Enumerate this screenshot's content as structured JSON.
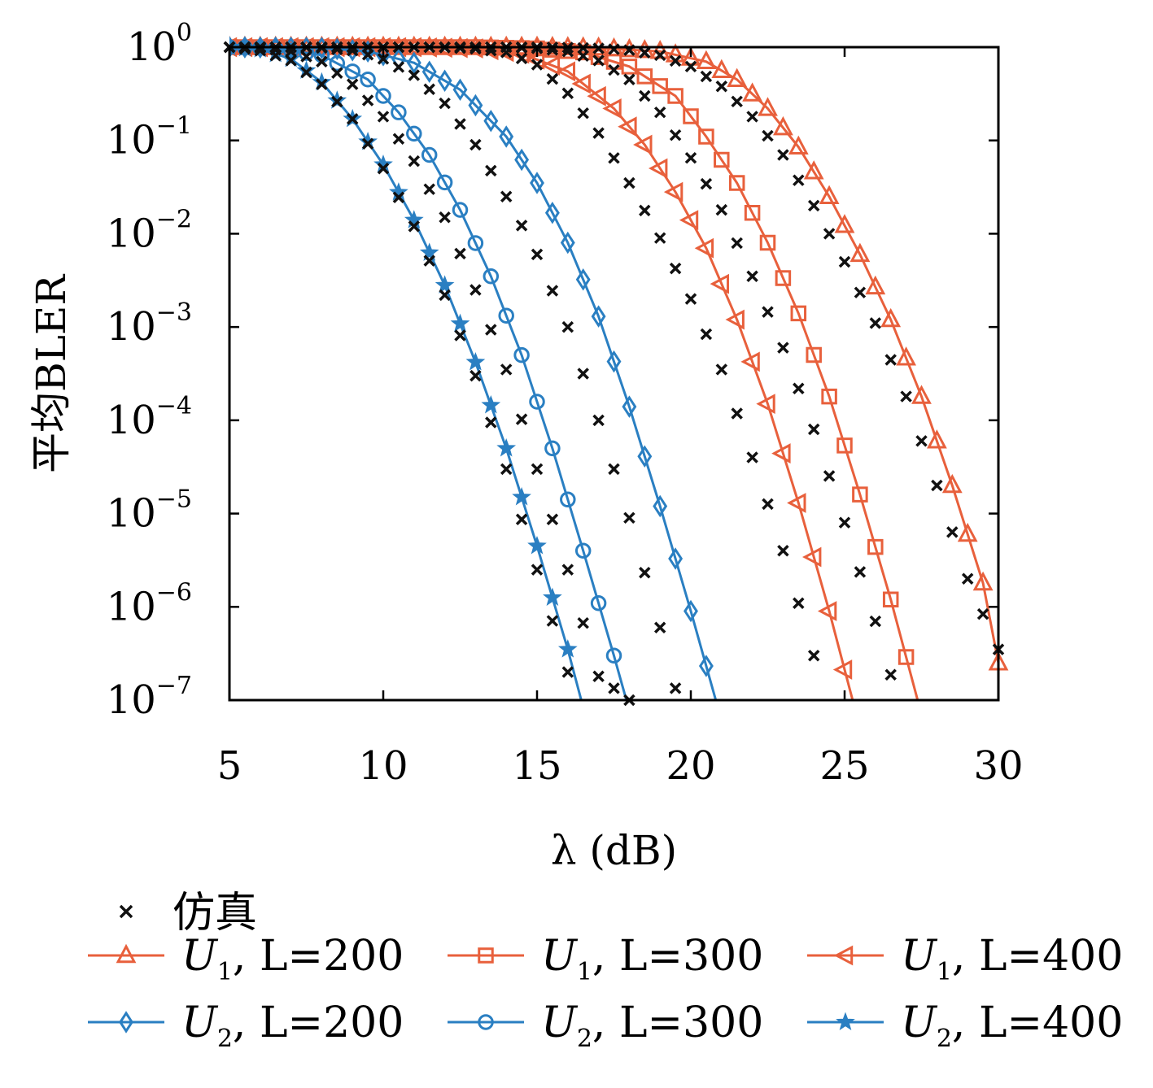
{
  "chart_data": {
    "type": "line",
    "xlabel": "λ (dB)",
    "ylabel": "平均BLER",
    "xlim": [
      5,
      30
    ],
    "ylim": [
      1e-07,
      1
    ],
    "yscale": "log",
    "grid": false,
    "x_ticks": [
      "5",
      "10",
      "15",
      "20",
      "25",
      "30"
    ],
    "y_ticks": [
      {
        "base": "10",
        "exp": "0"
      },
      {
        "base": "10",
        "exp": "−1"
      },
      {
        "base": "10",
        "exp": "−2"
      },
      {
        "base": "10",
        "exp": "−3"
      },
      {
        "base": "10",
        "exp": "−4"
      },
      {
        "base": "10",
        "exp": "−5"
      },
      {
        "base": "10",
        "exp": "−6"
      },
      {
        "base": "10",
        "exp": "−7"
      }
    ],
    "legend": {
      "placement": "bottom",
      "sim_label": "仿真",
      "entries": [
        {
          "var": "U",
          "sub": "1",
          "text": ", L=200",
          "series": 0
        },
        {
          "var": "U",
          "sub": "1",
          "text": ", L=300",
          "series": 1
        },
        {
          "var": "U",
          "sub": "1",
          "text": ", L=400",
          "series": 2
        },
        {
          "var": "U",
          "sub": "2",
          "text": ", L=200",
          "series": 3
        },
        {
          "var": "U",
          "sub": "2",
          "text": ", L=300",
          "series": 4
        },
        {
          "var": "U",
          "sub": "2",
          "text": ", L=400",
          "series": 5
        }
      ]
    },
    "series": [
      {
        "user": "U1",
        "L": 200,
        "marker": "triangle-up",
        "color": "#e8603c",
        "x": [
          5,
          15,
          17,
          19,
          20.5,
          21.5,
          22.5,
          23.5,
          24.5,
          25.5,
          26.5,
          27.5,
          28.5,
          29.5,
          30
        ],
        "y": [
          1,
          1,
          0.98,
          0.9,
          0.7,
          0.45,
          0.22,
          0.085,
          0.025,
          0.006,
          0.0012,
          0.00018,
          2e-05,
          1.8e-06,
          2.5e-07
        ]
      },
      {
        "user": "U1",
        "L": 300,
        "marker": "square",
        "color": "#e8603c",
        "x": [
          5,
          13,
          15,
          16.5,
          18,
          19.5,
          20.5,
          21.5,
          22.5,
          23.5,
          24.5,
          25.5,
          26.5,
          27.5,
          28.5
        ],
        "y": [
          1,
          1,
          0.97,
          0.88,
          0.62,
          0.3,
          0.11,
          0.035,
          0.008,
          0.0014,
          0.00018,
          1.6e-05,
          1.2e-06,
          7e-08,
          1e-07
        ]
      },
      {
        "user": "U1",
        "L": 400,
        "marker": "triangle-left",
        "color": "#e8603c",
        "x": [
          5,
          11,
          13,
          14.5,
          16,
          17.5,
          18.5,
          19.5,
          20.5,
          21.5,
          22.5,
          23.5,
          24.5,
          25.5,
          26.5,
          26.9
        ],
        "y": [
          1,
          1,
          0.97,
          0.85,
          0.55,
          0.22,
          0.09,
          0.028,
          0.007,
          0.0012,
          0.00015,
          1.3e-05,
          9e-07,
          5e-08,
          2e-08,
          1e-07
        ]
      },
      {
        "user": "U2",
        "L": 200,
        "marker": "diamond",
        "color": "#2a7fc2",
        "x": [
          5,
          8,
          9.5,
          11,
          12.5,
          14,
          15,
          16,
          17,
          18,
          19,
          20,
          21,
          22
        ],
        "y": [
          1,
          0.98,
          0.9,
          0.68,
          0.35,
          0.11,
          0.035,
          0.008,
          0.0013,
          0.00014,
          1.2e-05,
          9e-07,
          6e-08,
          1e-07
        ]
      },
      {
        "user": "U2",
        "L": 300,
        "marker": "circle",
        "color": "#2a7fc2",
        "x": [
          5,
          6.5,
          8,
          9.5,
          10.5,
          11.5,
          12.5,
          13.5,
          14.5,
          15.5,
          16.5,
          17.5,
          18.5,
          19.5
        ],
        "y": [
          1,
          0.97,
          0.82,
          0.45,
          0.2,
          0.07,
          0.018,
          0.0035,
          0.0005,
          5e-05,
          4e-06,
          3e-07,
          2e-08,
          1e-07
        ]
      },
      {
        "user": "U2",
        "L": 400,
        "marker": "star",
        "color": "#2a7fc2",
        "x": [
          5,
          6,
          7,
          8,
          9,
          10,
          11,
          12,
          13,
          14,
          15,
          16,
          17,
          17.8
        ],
        "y": [
          1,
          0.95,
          0.75,
          0.42,
          0.17,
          0.055,
          0.014,
          0.0028,
          0.00042,
          5e-05,
          4.5e-06,
          3.5e-07,
          2e-08,
          1e-07
        ]
      }
    ],
    "simulation": [
      {
        "x": [
          5,
          6,
          7,
          8,
          9,
          10,
          11,
          12,
          13,
          14,
          15,
          16,
          17,
          18,
          19,
          20,
          21,
          22,
          23,
          24,
          25,
          26,
          27,
          28,
          29,
          30
        ],
        "y": [
          1,
          1,
          1,
          1,
          1,
          1,
          1,
          1,
          1,
          1,
          1,
          0.99,
          0.97,
          0.93,
          0.82,
          0.62,
          0.38,
          0.18,
          0.07,
          0.02,
          0.005,
          0.0011,
          0.00018,
          2e-05,
          2e-06,
          3.5e-07
        ]
      },
      {
        "x": [
          5,
          7,
          9,
          11,
          13,
          14,
          15,
          16,
          17,
          18,
          19,
          20,
          21,
          22,
          23,
          24,
          25,
          26,
          27,
          28
        ],
        "y": [
          1,
          1,
          1,
          1,
          1,
          1,
          0.97,
          0.9,
          0.72,
          0.45,
          0.2,
          0.065,
          0.018,
          0.0035,
          0.0006,
          8e-05,
          8e-06,
          7e-07,
          5e-08,
          6e-08
        ]
      },
      {
        "x": [
          5,
          7,
          9,
          11,
          12,
          13,
          14,
          15,
          16,
          17,
          18,
          19,
          20,
          21,
          22,
          23,
          24,
          25,
          26
        ],
        "y": [
          1,
          1,
          1,
          1,
          0.99,
          0.96,
          0.88,
          0.65,
          0.32,
          0.12,
          0.035,
          0.009,
          0.002,
          0.00035,
          4e-05,
          4e-06,
          3e-07,
          2e-08,
          2e-07
        ]
      },
      {
        "x": [
          5,
          6,
          7,
          8,
          9,
          10,
          11,
          12,
          13,
          14,
          15,
          16,
          17,
          18,
          19,
          20,
          21
        ],
        "y": [
          1,
          1,
          1,
          0.98,
          0.92,
          0.75,
          0.5,
          0.25,
          0.09,
          0.025,
          0.006,
          0.001,
          0.0001,
          9e-06,
          6e-07,
          3e-08,
          1.5e-07
        ]
      },
      {
        "x": [
          5,
          6,
          7,
          8,
          9,
          10,
          11,
          12,
          13,
          14,
          15,
          16,
          17,
          18
        ],
        "y": [
          1,
          0.98,
          0.9,
          0.7,
          0.4,
          0.18,
          0.06,
          0.015,
          0.0025,
          0.00035,
          3e-05,
          2.5e-06,
          1.8e-07,
          1e-07
        ]
      },
      {
        "x": [
          5,
          6,
          7,
          8,
          9,
          10,
          11,
          12,
          13,
          14,
          15,
          16,
          17,
          17.5
        ],
        "y": [
          1,
          0.92,
          0.72,
          0.4,
          0.17,
          0.05,
          0.012,
          0.0022,
          0.0003,
          3e-05,
          2.5e-06,
          2e-07,
          1.5e-08,
          1e-07
        ]
      }
    ]
  }
}
